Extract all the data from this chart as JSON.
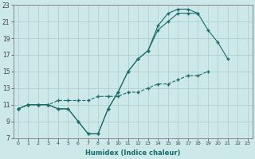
{
  "xlabel": "Humidex (Indice chaleur)",
  "bg_color": "#cce8e8",
  "grid_color": "#aacccc",
  "line_color": "#1a6b6b",
  "xlim": [
    -0.5,
    23.5
  ],
  "ylim": [
    7,
    23
  ],
  "xticks": [
    0,
    1,
    2,
    3,
    4,
    5,
    6,
    7,
    8,
    9,
    10,
    11,
    12,
    13,
    14,
    15,
    16,
    17,
    18,
    19,
    20,
    21,
    22,
    23
  ],
  "yticks": [
    7,
    9,
    11,
    13,
    15,
    17,
    19,
    21,
    23
  ],
  "line1_y": [
    10.5,
    11.0,
    11.0,
    11.0,
    10.5,
    10.5,
    9.0,
    7.5,
    7.5,
    10.5,
    12.5,
    15.0,
    16.5,
    17.5,
    20.5,
    22.0,
    22.5,
    22.5,
    22.0,
    null,
    null,
    null,
    null,
    null
  ],
  "line2_y": [
    10.5,
    11.0,
    11.0,
    11.0,
    10.5,
    10.5,
    9.0,
    7.5,
    7.5,
    10.5,
    12.5,
    15.0,
    16.5,
    17.5,
    20.0,
    21.0,
    22.0,
    22.0,
    22.0,
    20.0,
    18.5,
    16.5,
    null,
    null
  ],
  "line3_y": [
    10.5,
    11.0,
    11.0,
    11.0,
    11.5,
    11.5,
    11.5,
    11.5,
    12.0,
    12.0,
    12.0,
    12.5,
    12.5,
    13.0,
    13.5,
    13.5,
    14.0,
    14.5,
    14.5,
    15.0,
    null,
    null,
    null,
    null
  ]
}
